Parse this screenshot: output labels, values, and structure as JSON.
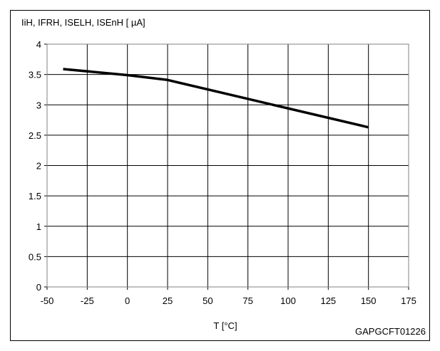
{
  "chart_data": {
    "type": "line",
    "title": "",
    "ylabel": "IiH, IFRH, ISELH, ISEnH [ µA]",
    "xlabel": "T [°C]",
    "xlim": [
      -50,
      175
    ],
    "ylim": [
      0,
      4
    ],
    "xticks": [
      "-50",
      "-25",
      "0",
      "25",
      "50",
      "75",
      "100",
      "125",
      "150",
      "175"
    ],
    "yticks": [
      "0",
      "0.5",
      "1",
      "1.5",
      "2",
      "2.5",
      "3",
      "3.5",
      "4"
    ],
    "grid": true,
    "series": [
      {
        "color": "#000000",
        "x": [
          -40,
          0,
          25,
          150
        ],
        "y": [
          3.59,
          3.49,
          3.41,
          2.63
        ]
      }
    ],
    "annotation": "GAPGCFT01226"
  }
}
